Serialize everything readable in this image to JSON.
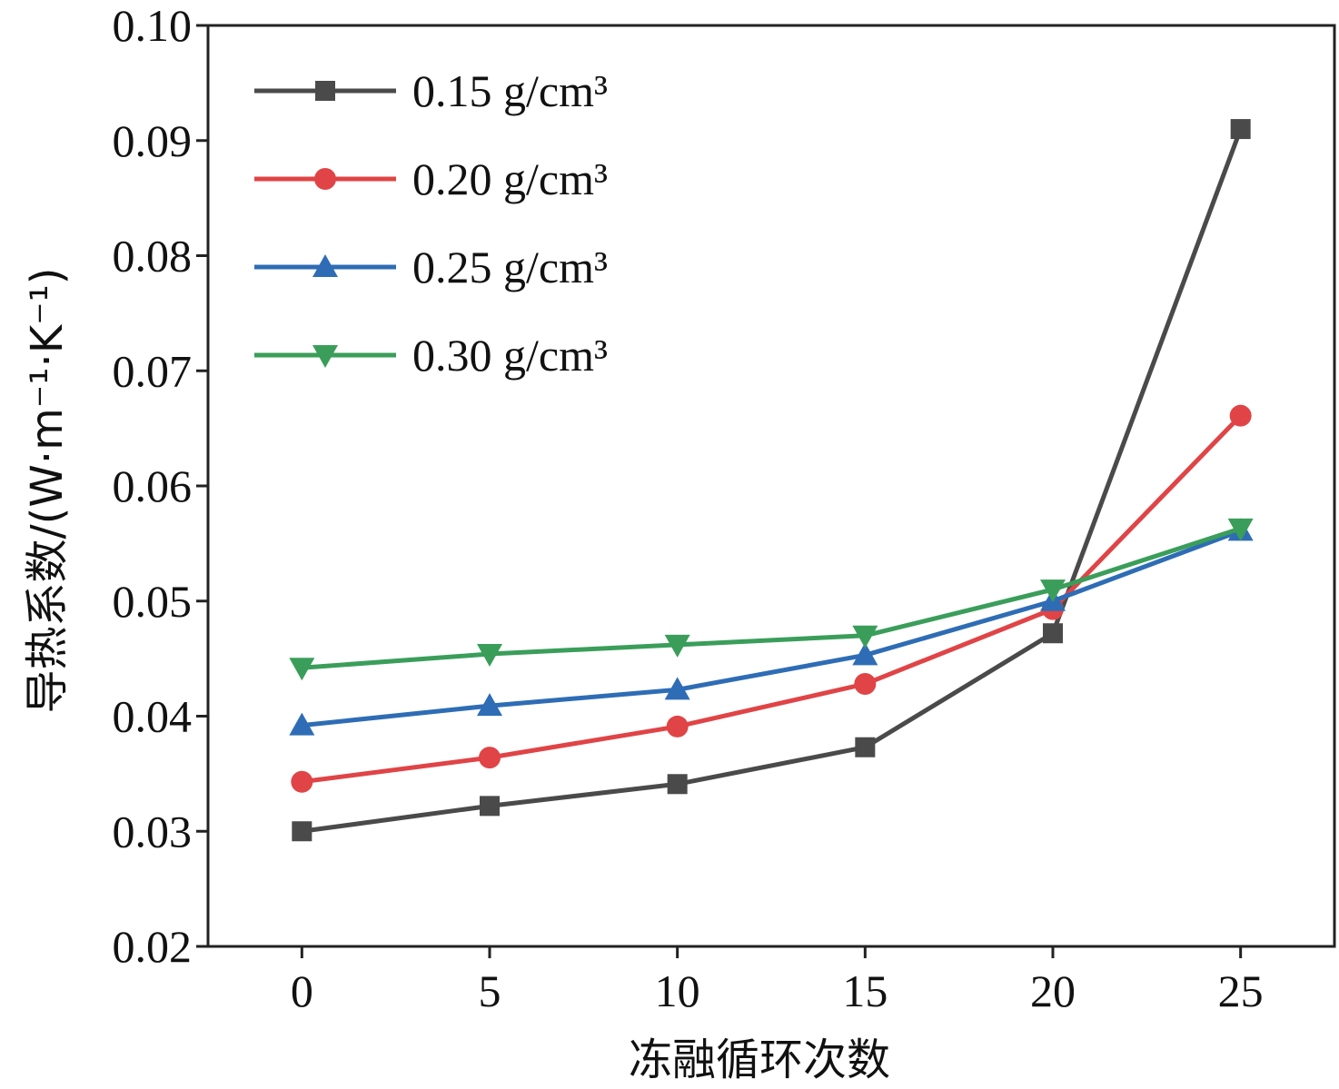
{
  "chart_data": {
    "type": "line",
    "xlabel": "冻融循环次数",
    "ylabel": "导热系数/(W·m⁻¹·K⁻¹)",
    "x": [
      0,
      5,
      10,
      15,
      20,
      25
    ],
    "x_ticks": [
      "0",
      "5",
      "10",
      "15",
      "20",
      "25"
    ],
    "y_ticks": [
      "0.02",
      "0.03",
      "0.04",
      "0.05",
      "0.06",
      "0.07",
      "0.08",
      "0.09",
      "0.10"
    ],
    "xlim": [
      -2.5,
      27.5
    ],
    "ylim": [
      0.02,
      0.1
    ],
    "grid": false,
    "legend_position": "top-left",
    "series": [
      {
        "name": "0.15 g/cm³",
        "marker": "square",
        "color": "#4a4a4a",
        "values": [
          0.03,
          0.0322,
          0.0341,
          0.0373,
          0.0472,
          0.091
        ]
      },
      {
        "name": "0.20 g/cm³",
        "marker": "circle",
        "color": "#e04446",
        "values": [
          0.0343,
          0.0364,
          0.0391,
          0.0428,
          0.0493,
          0.0661
        ]
      },
      {
        "name": "0.25 g/cm³",
        "marker": "triangle-up",
        "color": "#2e6db5",
        "values": [
          0.0392,
          0.0409,
          0.0423,
          0.0453,
          0.05,
          0.0561
        ]
      },
      {
        "name": "0.30 g/cm³",
        "marker": "triangle-down",
        "color": "#3a9e5a",
        "values": [
          0.0442,
          0.0454,
          0.0462,
          0.047,
          0.051,
          0.0563
        ]
      }
    ]
  }
}
